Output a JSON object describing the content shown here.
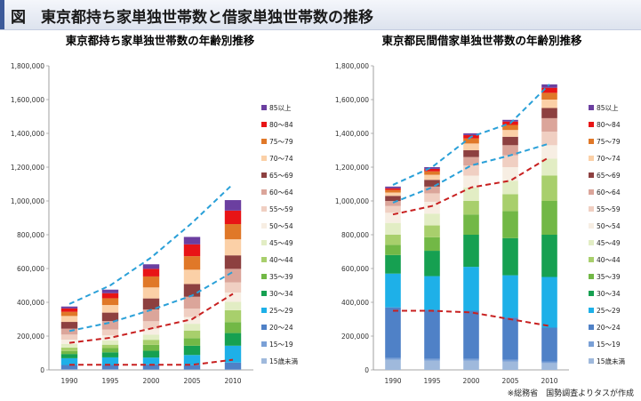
{
  "figure_title": "図　東京都持ち家単独世帯数と借家単独世帯数の推移",
  "source_note": "※総務省　国勢調査よりタスが作成",
  "age_groups": [
    "15歳未満",
    "15～19",
    "20～24",
    "25～29",
    "30～34",
    "35～39",
    "40～44",
    "45～49",
    "50～54",
    "55～59",
    "60～64",
    "65～69",
    "70～74",
    "75～79",
    "80～84",
    "85以上"
  ],
  "colors": [
    "#9fb9dc",
    "#7aa0d6",
    "#4f81c7",
    "#1eb0e8",
    "#16a051",
    "#72b846",
    "#a8cf6c",
    "#e2edc4",
    "#f7eee3",
    "#f0cfc2",
    "#dba59a",
    "#8d4040",
    "#fbd0a7",
    "#e07828",
    "#e81416",
    "#6b3fa0"
  ],
  "chart_data": [
    {
      "type": "bar",
      "stacked": true,
      "title": "東京都持ち家単独世帯数の年齢別推移",
      "categories": [
        "1990",
        "1995",
        "2000",
        "2005",
        "2010"
      ],
      "ylim": [
        0,
        1800000
      ],
      "yticks": [
        0,
        200000,
        400000,
        600000,
        800000,
        1000000,
        1200000,
        1400000,
        1600000,
        1800000
      ],
      "ytick_labels": [
        "0",
        "200,000",
        "400,000",
        "600,000",
        "800,000",
        "1,000,000",
        "1,200,000",
        "1,400,000",
        "1,600,000",
        "1,800,000"
      ],
      "series": [
        {
          "name": "15歳未満",
          "values": [
            1000,
            1000,
            1000,
            1000,
            1000
          ]
        },
        {
          "name": "15～19",
          "values": [
            3000,
            3000,
            2000,
            2000,
            2000
          ]
        },
        {
          "name": "20～24",
          "values": [
            25000,
            25000,
            30000,
            25000,
            40000
          ]
        },
        {
          "name": "25～29",
          "values": [
            40000,
            45000,
            40000,
            60000,
            100000
          ]
        },
        {
          "name": "30～34",
          "values": [
            25000,
            30000,
            40000,
            55000,
            75000
          ]
        },
        {
          "name": "35～39",
          "values": [
            18000,
            25000,
            35000,
            45000,
            65000
          ]
        },
        {
          "name": "40～44",
          "values": [
            20000,
            20000,
            30000,
            45000,
            70000
          ]
        },
        {
          "name": "45～49",
          "values": [
            22000,
            25000,
            30000,
            40000,
            50000
          ]
        },
        {
          "name": "50～54",
          "values": [
            25000,
            30000,
            35000,
            40000,
            55000
          ]
        },
        {
          "name": "55～59",
          "values": [
            30000,
            35000,
            45000,
            50000,
            60000
          ]
        },
        {
          "name": "60～64",
          "values": [
            35000,
            50000,
            70000,
            70000,
            80000
          ]
        },
        {
          "name": "65～69",
          "values": [
            40000,
            50000,
            65000,
            75000,
            80000
          ]
        },
        {
          "name": "70～74",
          "values": [
            35000,
            45000,
            65000,
            85000,
            95000
          ]
        },
        {
          "name": "75～79",
          "values": [
            25000,
            40000,
            65000,
            80000,
            90000
          ]
        },
        {
          "name": "80～84",
          "values": [
            20000,
            30000,
            45000,
            70000,
            80000
          ]
        },
        {
          "name": "85以上",
          "values": [
            11000,
            21000,
            27000,
            44000,
            62000
          ]
        }
      ],
      "trend_lines": [
        {
          "name": "total",
          "color": "#2aa0d8",
          "values": [
            390000,
            500000,
            665000,
            870000,
            1100000
          ]
        },
        {
          "name": "upper",
          "color": "#2aa0d8",
          "values": [
            230000,
            280000,
            355000,
            440000,
            580000
          ]
        },
        {
          "name": "middle",
          "color": "#c82020",
          "values": [
            160000,
            190000,
            245000,
            300000,
            450000
          ]
        },
        {
          "name": "lower",
          "color": "#c82020",
          "values": [
            30000,
            30000,
            30000,
            30000,
            60000
          ]
        }
      ]
    },
    {
      "type": "bar",
      "stacked": true,
      "title": "東京都民間借家単独世帯数の年齢別推移",
      "categories": [
        "1990",
        "1995",
        "2000",
        "2005",
        "2010"
      ],
      "ylim": [
        0,
        1800000
      ],
      "yticks": [
        0,
        200000,
        400000,
        600000,
        800000,
        1000000,
        1200000,
        1400000,
        1600000,
        1800000
      ],
      "ytick_labels": [
        "0",
        "200,000",
        "400,000",
        "600,000",
        "800,000",
        "1,000,000",
        "1,200,000",
        "1,400,000",
        "1,600,000",
        "1,800,000"
      ],
      "series": [
        {
          "name": "15歳未満",
          "values": [
            60000,
            55000,
            55000,
            50000,
            40000
          ]
        },
        {
          "name": "15～19",
          "values": [
            10000,
            10000,
            10000,
            10000,
            10000
          ]
        },
        {
          "name": "20～24",
          "values": [
            300000,
            290000,
            285000,
            250000,
            200000
          ]
        },
        {
          "name": "25～29",
          "values": [
            200000,
            200000,
            260000,
            250000,
            300000
          ]
        },
        {
          "name": "30～34",
          "values": [
            110000,
            150000,
            190000,
            220000,
            250000
          ]
        },
        {
          "name": "35～39",
          "values": [
            60000,
            80000,
            120000,
            160000,
            200000
          ]
        },
        {
          "name": "40～44",
          "values": [
            60000,
            70000,
            80000,
            100000,
            150000
          ]
        },
        {
          "name": "45～49",
          "values": [
            70000,
            70000,
            80000,
            80000,
            100000
          ]
        },
        {
          "name": "50～54",
          "values": [
            60000,
            70000,
            70000,
            80000,
            80000
          ]
        },
        {
          "name": "55～59",
          "values": [
            40000,
            50000,
            60000,
            70000,
            80000
          ]
        },
        {
          "name": "60～64",
          "values": [
            30000,
            40000,
            50000,
            60000,
            80000
          ]
        },
        {
          "name": "65～69",
          "values": [
            30000,
            40000,
            40000,
            50000,
            60000
          ]
        },
        {
          "name": "70～74",
          "values": [
            20000,
            30000,
            40000,
            40000,
            50000
          ]
        },
        {
          "name": "75～79",
          "values": [
            15000,
            20000,
            30000,
            30000,
            40000
          ]
        },
        {
          "name": "80～84",
          "values": [
            10000,
            15000,
            20000,
            20000,
            30000
          ]
        },
        {
          "name": "85以上",
          "values": [
            10000,
            10000,
            10000,
            10000,
            20000
          ]
        }
      ],
      "trend_lines": [
        {
          "name": "total",
          "color": "#2aa0d8",
          "values": [
            1095000,
            1200000,
            1380000,
            1460000,
            1690000
          ]
        },
        {
          "name": "upper",
          "color": "#2aa0d8",
          "values": [
            990000,
            1080000,
            1210000,
            1270000,
            1340000
          ]
        },
        {
          "name": "middle",
          "color": "#c82020",
          "values": [
            920000,
            970000,
            1080000,
            1120000,
            1260000
          ]
        },
        {
          "name": "lower",
          "color": "#c82020",
          "values": [
            350000,
            350000,
            340000,
            300000,
            260000
          ]
        }
      ]
    }
  ]
}
